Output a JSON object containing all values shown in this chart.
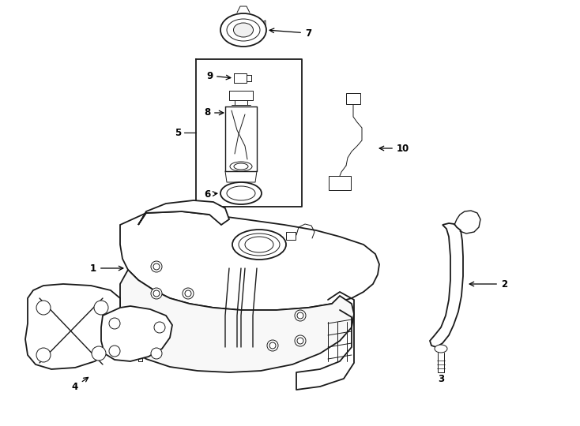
{
  "bg_color": "#ffffff",
  "line_color": "#1a1a1a",
  "fig_width": 7.34,
  "fig_height": 5.4,
  "dpi": 100,
  "lw_main": 1.3,
  "lw_thin": 0.7,
  "lw_med": 1.0
}
